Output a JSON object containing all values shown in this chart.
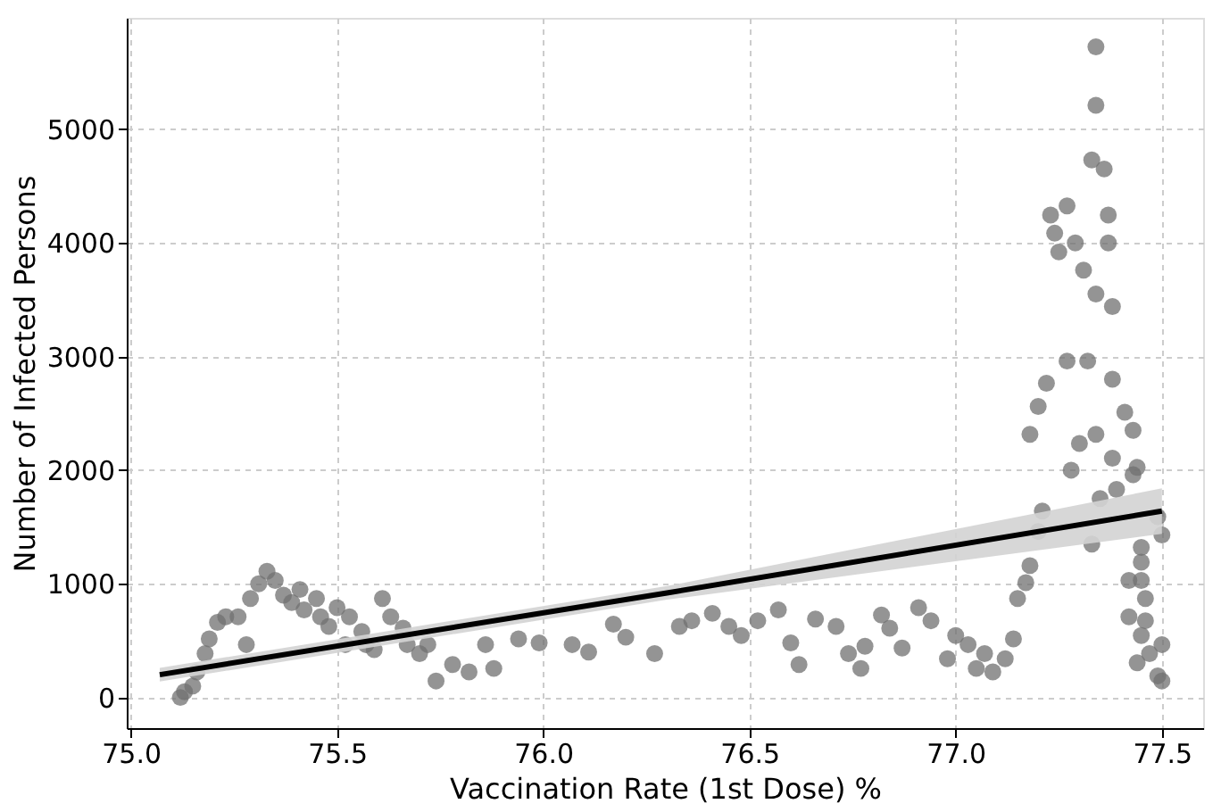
{
  "chart_data": {
    "type": "scatter",
    "xlabel": "Vaccination Rate (1st Dose) %",
    "ylabel": "Number of Infected Persons",
    "xlim": [
      74.99,
      77.6
    ],
    "ylim": [
      -270,
      5980
    ],
    "xticks": [
      {
        "value": 75,
        "label": "75.0"
      },
      75.5,
      {
        "value": 76,
        "label": "76.0"
      },
      76.5,
      {
        "value": 77,
        "label": "77.0"
      },
      77.5
    ],
    "yticks": [
      0,
      1000,
      2000,
      3000,
      4000,
      5000
    ],
    "grid": true,
    "series": [
      {
        "marker": "circle",
        "color": "#707070",
        "x": [
          75.12,
          75.13,
          75.15,
          75.16,
          75.18,
          75.19,
          75.21,
          75.23,
          75.26,
          75.28,
          75.29,
          75.31,
          75.33,
          75.35,
          75.37,
          75.39,
          75.41,
          75.42,
          75.45,
          75.46,
          75.48,
          75.5,
          75.52,
          75.53,
          75.56,
          75.57,
          75.59,
          75.61,
          75.63,
          75.66,
          75.67,
          75.7,
          75.72,
          75.74,
          75.78,
          75.82,
          75.86,
          75.88,
          75.94,
          75.99,
          76.07,
          76.11,
          76.17,
          76.2,
          76.27,
          76.33,
          76.36,
          76.41,
          76.45,
          76.48,
          76.52,
          76.57,
          76.6,
          76.62,
          76.66,
          76.71,
          76.74,
          76.77,
          76.78,
          76.82,
          76.84,
          76.87,
          76.91,
          76.94,
          76.98,
          77.0,
          77.03,
          77.05,
          77.07,
          77.09,
          77.12,
          77.14,
          77.15,
          77.17,
          77.18,
          77.2,
          77.21,
          77.18,
          77.2,
          77.22,
          77.23,
          77.24,
          77.25,
          77.27,
          77.27,
          77.28,
          77.3,
          77.29,
          77.31,
          77.33,
          77.34,
          77.33,
          77.35,
          77.34,
          77.32,
          77.34,
          77.34,
          77.36,
          77.37,
          77.37,
          77.38,
          77.38,
          77.38,
          77.39,
          77.41,
          77.43,
          77.42,
          77.44,
          77.43,
          77.42,
          77.45,
          77.45,
          77.46,
          77.45,
          77.45,
          77.47,
          77.44,
          77.5,
          77.46,
          77.5,
          77.49,
          77.5,
          77.49
        ],
        "values": [
          0,
          50,
          100,
          225,
          385,
          515,
          660,
          710,
          710,
          465,
          870,
          1000,
          1110,
          1030,
          900,
          835,
          950,
          770,
          870,
          710,
          625,
          790,
          465,
          710,
          580,
          465,
          420,
          870,
          710,
          610,
          465,
          385,
          465,
          145,
          290,
          225,
          465,
          255,
          515,
          480,
          465,
          400,
          645,
          530,
          385,
          625,
          675,
          740,
          625,
          545,
          675,
          770,
          480,
          290,
          690,
          625,
          385,
          255,
          450,
          725,
          610,
          435,
          790,
          675,
          340,
          545,
          465,
          255,
          385,
          225,
          340,
          515,
          870,
          1010,
          1160,
          1460,
          1640,
          2315,
          2560,
          2765,
          4245,
          4085,
          3920,
          4325,
          2960,
          2000,
          2235,
          4000,
          3760,
          4730,
          3550,
          1350,
          1750,
          2315,
          2960,
          5725,
          5210,
          4650,
          4245,
          4000,
          3440,
          2800,
          2105,
          1830,
          2510,
          1960,
          1030,
          2025,
          2350,
          710,
          1320,
          1190,
          675,
          1030,
          545,
          385,
          305,
          145,
          870,
          1430,
          1590,
          465,
          190
        ]
      },
      {
        "type": "line",
        "color": "#000000",
        "x": [
          75.07,
          76.3,
          77.5
        ],
        "values": [
          200,
          920,
          1640
        ],
        "lower": [
          140,
          860,
          1440
        ],
        "upper": [
          260,
          980,
          1840
        ]
      }
    ]
  }
}
